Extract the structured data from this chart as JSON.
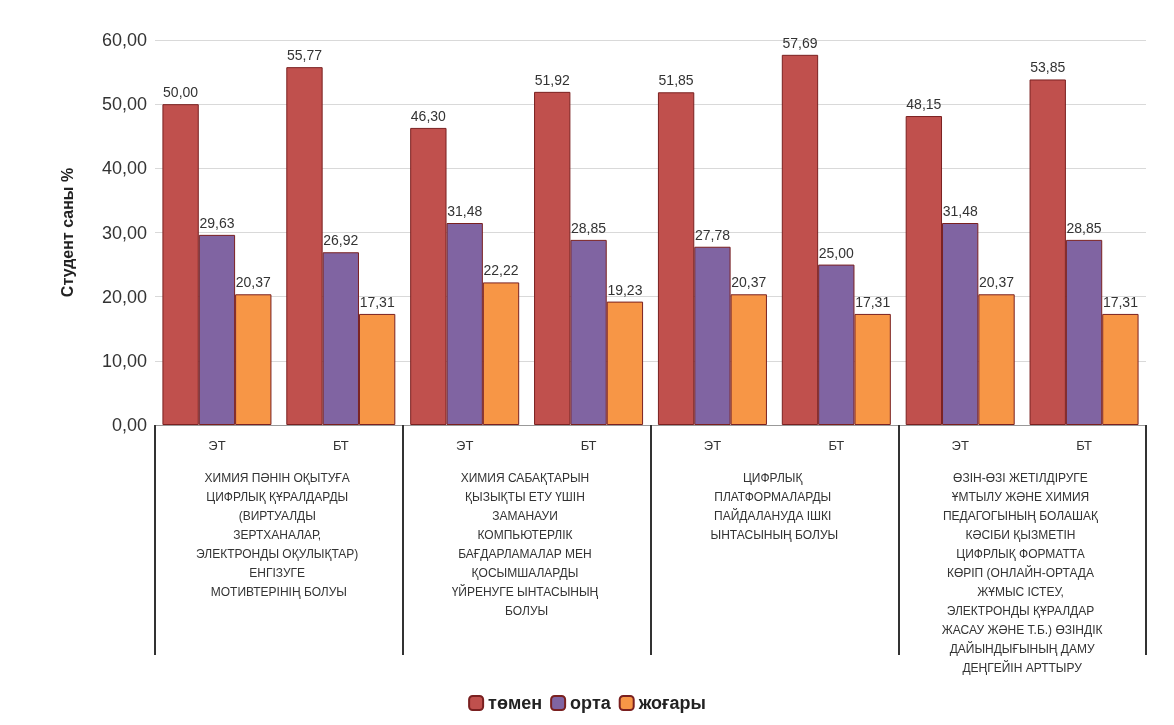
{
  "chart_data": {
    "type": "bar",
    "ylabel": "Студент саны %",
    "categories": [
      "ЭТ",
      "БТ",
      "ЭТ",
      "БТ",
      "ЭТ",
      "БТ",
      "ЭТ",
      "БТ"
    ],
    "annotations": [
      "ХИМИЯ ПӘНІН ОҚЫТУҒА ЦИФРЛЫҚ ҚҰРАЛДАРДЫ (ВИРТУАЛДЫ ЗЕРТХАНАЛАР, ЭЛЕКТРОНДЫ ОҚУЛЫҚТАР) ЕНГІЗУГЕ МОТИВТЕРІНІҢ БОЛУЫ",
      "ХИМИЯ САБАҚТАРЫН ҚЫЗЫҚТЫ ЕТУ ҮШІН ЗАМАНАУИ КОМПЬЮТЕРЛІК БАҒДАРЛАМАЛАР МЕН ҚОСЫМШАЛАРДЫ ҮЙРЕНУГЕ ЫНТАСЫНЫҢ БОЛУЫ",
      "ЦИФРЛЫҚ ПЛАТФОРМАЛАРДЫ ПАЙДАЛАНУДА ІШКІ ЫНТАСЫНЫҢ БОЛУЫ",
      "ӨЗІН-ӨЗІ ЖЕТІЛДІРУГЕ ҰМТЫЛУ ЖӘНЕ ХИМИЯ ПЕДАГОГЫНЫҢ БОЛАШАҚ КӘСІБИ ҚЫЗМЕТІН ЦИФРЛЫҚ ФОРМАТТА КӨРІП (ОНЛАЙН-ОРТАДА ЖҰМЫС ІСТЕУ, ЭЛЕКТРОНДЫ ҚҰРАЛДАР ЖАСАУ ЖӘНЕ Т.Б.) ӨЗІНДІК ДАЙЫНДЫҒЫНЫҢ ДАМУ ДЕҢГЕЙІН АРТТЫРУ"
    ],
    "series": [
      {
        "name": "төмен",
        "color": "#c0504d",
        "values": [
          50.0,
          55.77,
          46.3,
          51.92,
          51.85,
          57.69,
          48.15,
          53.85
        ],
        "value_labels": [
          "50,00",
          "55,77",
          "46,30",
          "51,92",
          "51,85",
          "57,69",
          "48,15",
          "53,85"
        ]
      },
      {
        "name": "орта",
        "color": "#8064a2",
        "values": [
          29.63,
          26.92,
          31.48,
          28.85,
          27.78,
          25.0,
          31.48,
          28.85
        ],
        "value_labels": [
          "29,63",
          "26,92",
          "31,48",
          "28,85",
          "27,78",
          "25,00",
          "31,48",
          "28,85"
        ]
      },
      {
        "name": "жоғары",
        "color": "#f79646",
        "values": [
          20.37,
          17.31,
          22.22,
          19.23,
          20.37,
          17.31,
          20.37,
          17.31
        ],
        "value_labels": [
          "20,37",
          "17,31",
          "22,22",
          "19,23",
          "20,37",
          "17,31",
          "20,37",
          "17,31"
        ]
      }
    ],
    "ylim": [
      0,
      60
    ],
    "yticks": [
      {
        "value": 0,
        "label": "0,00"
      },
      {
        "value": 10,
        "label": "10,00"
      },
      {
        "value": 20,
        "label": "20,00"
      },
      {
        "value": 30,
        "label": "30,00"
      },
      {
        "value": 40,
        "label": "40,00"
      },
      {
        "value": 50,
        "label": "50,00"
      },
      {
        "value": 60,
        "label": "60,00"
      }
    ],
    "grid": true,
    "legend": "bottom"
  }
}
